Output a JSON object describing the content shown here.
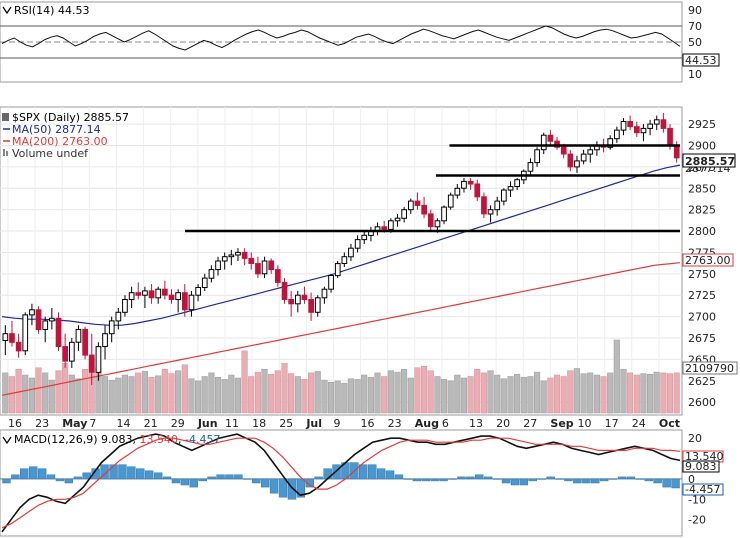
{
  "chart_data": [
    {
      "type": "line",
      "name": "rsi-panel",
      "indicator_label": "RSI(14)",
      "last_value": "44.53",
      "yticks": [
        "90",
        "70",
        "50",
        "30",
        "10"
      ],
      "ylim": [
        0,
        100
      ],
      "levels": [
        70,
        30
      ],
      "series": [
        {
          "values": [
            48,
            52,
            55,
            50,
            46,
            44,
            48,
            53,
            56,
            58,
            55,
            50,
            45,
            48,
            52,
            57,
            60,
            62,
            58,
            54,
            50,
            53,
            57,
            61,
            64,
            60,
            55,
            50,
            45,
            42,
            40,
            44,
            48,
            52,
            50,
            46,
            43,
            47,
            52,
            56,
            60,
            63,
            65,
            62,
            58,
            55,
            57,
            60,
            62,
            65,
            63,
            59,
            55,
            52,
            49,
            46,
            48,
            52,
            56,
            58,
            60,
            57,
            53,
            50,
            48,
            52,
            56,
            60,
            63,
            66,
            64,
            61,
            58,
            56,
            54,
            57,
            60,
            63,
            65,
            62,
            59,
            56,
            54,
            52,
            55,
            58,
            61,
            64,
            67,
            70,
            68,
            64,
            60,
            57,
            55,
            57,
            60,
            63,
            65,
            66,
            64,
            61,
            58,
            55,
            56,
            58,
            60,
            62,
            60,
            55,
            50,
            44.53
          ]
        }
      ]
    },
    {
      "type": "line",
      "name": "price-panel",
      "symbol_label": "$SPX (Daily)",
      "last_price": "2885.57",
      "ma50_label": "MA(50)",
      "ma50_value": "2877.14",
      "ma200_label": "MA(200)",
      "ma200_value": "2763.00",
      "volume_label": "Volume undef",
      "volume_value": "2109790",
      "yticks": [
        "2925",
        "2900",
        "2875",
        "2850",
        "2825",
        "2800",
        "2775",
        "2750",
        "2725",
        "2700",
        "2675",
        "2650",
        "2625",
        "2600"
      ],
      "ylim": [
        2585,
        2945
      ],
      "xticks": [
        "16",
        "23",
        "May",
        "7",
        "14",
        "21",
        "29",
        "Jun",
        "11",
        "18",
        "25",
        "Jul",
        "9",
        "16",
        "23",
        "Aug",
        "6",
        "13",
        "20",
        "27",
        "Sep",
        "10",
        "17",
        "24",
        "Oct"
      ],
      "candles": [
        [
          2672,
          2690,
          2655,
          2680
        ],
        [
          2680,
          2695,
          2665,
          2670
        ],
        [
          2670,
          2680,
          2652,
          2660
        ],
        [
          2660,
          2705,
          2655,
          2702
        ],
        [
          2702,
          2715,
          2690,
          2708
        ],
        [
          2708,
          2712,
          2680,
          2685
        ],
        [
          2685,
          2700,
          2670,
          2695
        ],
        [
          2695,
          2710,
          2685,
          2698
        ],
        [
          2698,
          2705,
          2660,
          2665
        ],
        [
          2665,
          2680,
          2640,
          2648
        ],
        [
          2648,
          2675,
          2640,
          2670
        ],
        [
          2670,
          2690,
          2660,
          2685
        ],
        [
          2685,
          2688,
          2650,
          2655
        ],
        [
          2655,
          2680,
          2620,
          2635
        ],
        [
          2635,
          2670,
          2625,
          2665
        ],
        [
          2665,
          2690,
          2650,
          2680
        ],
        [
          2680,
          2700,
          2670,
          2695
        ],
        [
          2695,
          2710,
          2685,
          2705
        ],
        [
          2705,
          2725,
          2700,
          2720
        ],
        [
          2720,
          2735,
          2710,
          2728
        ],
        [
          2728,
          2740,
          2720,
          2725
        ],
        [
          2725,
          2735,
          2710,
          2730
        ],
        [
          2730,
          2738,
          2715,
          2722
        ],
        [
          2722,
          2735,
          2715,
          2732
        ],
        [
          2732,
          2742,
          2720,
          2725
        ],
        [
          2725,
          2732,
          2715,
          2720
        ],
        [
          2720,
          2732,
          2705,
          2728
        ],
        [
          2728,
          2738,
          2700,
          2708
        ],
        [
          2708,
          2730,
          2700,
          2725
        ],
        [
          2725,
          2738,
          2718,
          2734
        ],
        [
          2734,
          2750,
          2730,
          2745
        ],
        [
          2745,
          2760,
          2740,
          2755
        ],
        [
          2755,
          2770,
          2748,
          2765
        ],
        [
          2765,
          2775,
          2755,
          2770
        ],
        [
          2770,
          2778,
          2760,
          2772
        ],
        [
          2772,
          2780,
          2765,
          2775
        ],
        [
          2775,
          2780,
          2760,
          2768
        ],
        [
          2768,
          2775,
          2755,
          2762
        ],
        [
          2762,
          2770,
          2745,
          2750
        ],
        [
          2750,
          2770,
          2745,
          2765
        ],
        [
          2765,
          2768,
          2750,
          2755
        ],
        [
          2755,
          2760,
          2735,
          2740
        ],
        [
          2740,
          2745,
          2715,
          2720
        ],
        [
          2720,
          2730,
          2700,
          2715
        ],
        [
          2715,
          2730,
          2705,
          2725
        ],
        [
          2725,
          2735,
          2715,
          2720
        ],
        [
          2720,
          2728,
          2695,
          2705
        ],
        [
          2705,
          2725,
          2700,
          2722
        ],
        [
          2722,
          2735,
          2715,
          2732
        ],
        [
          2732,
          2750,
          2728,
          2748
        ],
        [
          2748,
          2765,
          2745,
          2762
        ],
        [
          2762,
          2775,
          2758,
          2770
        ],
        [
          2770,
          2785,
          2765,
          2780
        ],
        [
          2780,
          2795,
          2775,
          2790
        ],
        [
          2790,
          2800,
          2785,
          2795
        ],
        [
          2795,
          2805,
          2788,
          2800
        ],
        [
          2800,
          2810,
          2795,
          2805
        ],
        [
          2805,
          2812,
          2798,
          2802
        ],
        [
          2802,
          2815,
          2798,
          2812
        ],
        [
          2812,
          2820,
          2805,
          2815
        ],
        [
          2815,
          2828,
          2810,
          2825
        ],
        [
          2825,
          2838,
          2820,
          2835
        ],
        [
          2835,
          2845,
          2825,
          2830
        ],
        [
          2830,
          2840,
          2815,
          2820
        ],
        [
          2820,
          2825,
          2800,
          2805
        ],
        [
          2805,
          2815,
          2798,
          2812
        ],
        [
          2812,
          2830,
          2808,
          2828
        ],
        [
          2828,
          2845,
          2825,
          2842
        ],
        [
          2842,
          2855,
          2838,
          2850
        ],
        [
          2850,
          2862,
          2845,
          2858
        ],
        [
          2858,
          2862,
          2848,
          2855
        ],
        [
          2855,
          2860,
          2835,
          2840
        ],
        [
          2840,
          2845,
          2815,
          2820
        ],
        [
          2820,
          2830,
          2810,
          2825
        ],
        [
          2825,
          2840,
          2818,
          2835
        ],
        [
          2835,
          2850,
          2830,
          2848
        ],
        [
          2848,
          2858,
          2840,
          2852
        ],
        [
          2852,
          2862,
          2848,
          2860
        ],
        [
          2860,
          2872,
          2855,
          2870
        ],
        [
          2870,
          2885,
          2865,
          2880
        ],
        [
          2880,
          2898,
          2875,
          2895
        ],
        [
          2895,
          2915,
          2890,
          2912
        ],
        [
          2912,
          2918,
          2900,
          2905
        ],
        [
          2905,
          2910,
          2895,
          2898
        ],
        [
          2898,
          2902,
          2885,
          2890
        ],
        [
          2890,
          2895,
          2870,
          2875
        ],
        [
          2875,
          2888,
          2868,
          2882
        ],
        [
          2882,
          2895,
          2878,
          2890
        ],
        [
          2890,
          2900,
          2880,
          2895
        ],
        [
          2895,
          2905,
          2888,
          2900
        ],
        [
          2900,
          2908,
          2892,
          2898
        ],
        [
          2898,
          2912,
          2895,
          2908
        ],
        [
          2908,
          2922,
          2903,
          2918
        ],
        [
          2918,
          2932,
          2912,
          2928
        ],
        [
          2928,
          2935,
          2918,
          2922
        ],
        [
          2922,
          2928,
          2910,
          2915
        ],
        [
          2915,
          2925,
          2905,
          2920
        ],
        [
          2920,
          2930,
          2912,
          2925
        ],
        [
          2925,
          2935,
          2918,
          2930
        ],
        [
          2930,
          2938,
          2915,
          2920
        ],
        [
          2920,
          2925,
          2895,
          2900
        ],
        [
          2900,
          2905,
          2880,
          2885.57
        ]
      ],
      "ma50": [
        2700,
        2698,
        2697,
        2697,
        2696,
        2695,
        2693,
        2691,
        2690,
        2690,
        2692,
        2695,
        2698,
        2702,
        2706,
        2710,
        2714,
        2718,
        2722,
        2726,
        2730,
        2734,
        2738,
        2742,
        2746,
        2750,
        2755,
        2760,
        2765,
        2770,
        2775,
        2780,
        2785,
        2790,
        2795,
        2800,
        2805,
        2810,
        2815,
        2820,
        2825,
        2830,
        2835,
        2840,
        2845,
        2850,
        2855,
        2860,
        2865,
        2870,
        2874,
        2877.14
      ],
      "ma200": [
        2608,
        2610,
        2612,
        2614,
        2616,
        2618,
        2620,
        2622,
        2624,
        2626,
        2628,
        2630,
        2632,
        2634,
        2636,
        2638,
        2640,
        2642,
        2644,
        2646,
        2648,
        2650,
        2652,
        2654,
        2656,
        2658,
        2660,
        2662,
        2664,
        2666,
        2668,
        2670,
        2672,
        2674,
        2676,
        2678,
        2680,
        2682,
        2684,
        2686,
        2688,
        2690,
        2692,
        2694,
        2696,
        2698,
        2700,
        2702,
        2704,
        2706,
        2708,
        2710,
        2712,
        2714,
        2716,
        2718,
        2720,
        2722,
        2724,
        2726,
        2728,
        2730,
        2732,
        2734,
        2736,
        2738,
        2740,
        2742,
        2744,
        2746,
        2748,
        2750,
        2752,
        2754,
        2756,
        2758,
        2760,
        2761,
        2762,
        2763.0
      ],
      "volume": [
        0.55,
        0.5,
        0.6,
        0.52,
        0.48,
        0.62,
        0.55,
        0.45,
        0.58,
        0.68,
        0.52,
        0.47,
        0.6,
        0.75,
        0.62,
        0.5,
        0.45,
        0.48,
        0.52,
        0.5,
        0.55,
        0.57,
        0.49,
        0.51,
        0.6,
        0.54,
        0.58,
        0.66,
        0.47,
        0.44,
        0.5,
        0.55,
        0.49,
        0.46,
        0.52,
        0.48,
        0.85,
        0.5,
        0.56,
        0.6,
        0.53,
        0.58,
        0.68,
        0.54,
        0.5,
        0.46,
        0.55,
        0.57,
        0.45,
        0.42,
        0.44,
        0.41,
        0.47,
        0.46,
        0.52,
        0.49,
        0.55,
        0.5,
        0.58,
        0.56,
        0.6,
        0.48,
        0.62,
        0.64,
        0.58,
        0.5,
        0.46,
        0.44,
        0.52,
        0.48,
        0.5,
        0.6,
        0.55,
        0.58,
        0.52,
        0.47,
        0.5,
        0.53,
        0.49,
        0.5,
        0.56,
        0.44,
        0.48,
        0.52,
        0.5,
        0.58,
        0.61,
        0.54,
        0.55,
        0.52,
        0.5,
        0.55,
        1.0,
        0.6,
        0.55,
        0.52,
        0.54,
        0.53,
        0.56,
        0.55,
        0.54,
        0.55
      ],
      "support_levels": [
        2900,
        2865,
        2800
      ]
    },
    {
      "type": "line",
      "name": "macd-panel",
      "indicator_label": "MACD(12,26,9)",
      "macd_value": "9.083",
      "signal_value": "13.540",
      "hist_value": "-4.457",
      "yticks": [
        "20",
        "10",
        "0",
        "-10",
        "-20"
      ],
      "ylim": [
        -28,
        24
      ],
      "series": [
        {
          "name": "MACD",
          "values": [
            -26,
            -20,
            -14,
            -10,
            -8,
            -9,
            -11,
            -12,
            -8,
            -4,
            2,
            8,
            12,
            16,
            18,
            20,
            21,
            22,
            21,
            18,
            16,
            14,
            16,
            18,
            20,
            21,
            22,
            20,
            18,
            14,
            8,
            2,
            -4,
            -8,
            -7,
            -4,
            0,
            4,
            8,
            12,
            15,
            18,
            19,
            20,
            20,
            19,
            18,
            18,
            17,
            17,
            18,
            19,
            20,
            21,
            21,
            20,
            18,
            16,
            15,
            16,
            17,
            18,
            17,
            15,
            14,
            13,
            12,
            13,
            14,
            15,
            16,
            15,
            14,
            12,
            10,
            9.083
          ]
        },
        {
          "name": "Signal",
          "values": [
            -24,
            -22,
            -19,
            -16,
            -13,
            -11,
            -10,
            -10,
            -9,
            -7,
            -3,
            1,
            5,
            9,
            12,
            15,
            17,
            19,
            20,
            20,
            19,
            18,
            17,
            17,
            18,
            19,
            20,
            20,
            20,
            18,
            15,
            11,
            6,
            1,
            -3,
            -5,
            -5,
            -3,
            0,
            4,
            8,
            11,
            14,
            16,
            18,
            19,
            19,
            19,
            18,
            18,
            18,
            18,
            19,
            19,
            20,
            20,
            20,
            19,
            18,
            17,
            17,
            17,
            17,
            16,
            16,
            15,
            14,
            14,
            14,
            14,
            15,
            15,
            15,
            14,
            14,
            13.54
          ]
        }
      ],
      "histogram": [
        -2,
        2,
        5,
        6,
        5,
        2,
        -1,
        -2,
        1,
        3,
        5,
        7,
        7,
        7,
        6,
        5,
        4,
        3,
        1,
        -2,
        -3,
        -4,
        -1,
        1,
        2,
        2,
        2,
        0,
        -2,
        -4,
        -7,
        -9,
        -10,
        -9,
        -4,
        1,
        5,
        7,
        8,
        8,
        7,
        7,
        5,
        4,
        2,
        0,
        -1,
        -1,
        -1,
        -1,
        0,
        1,
        1,
        2,
        1,
        0,
        -2,
        -3,
        -3,
        -1,
        0,
        1,
        0,
        -1,
        -2,
        -2,
        -2,
        -1,
        0,
        1,
        1,
        0,
        -1,
        -2,
        -4,
        -4.457
      ]
    }
  ]
}
